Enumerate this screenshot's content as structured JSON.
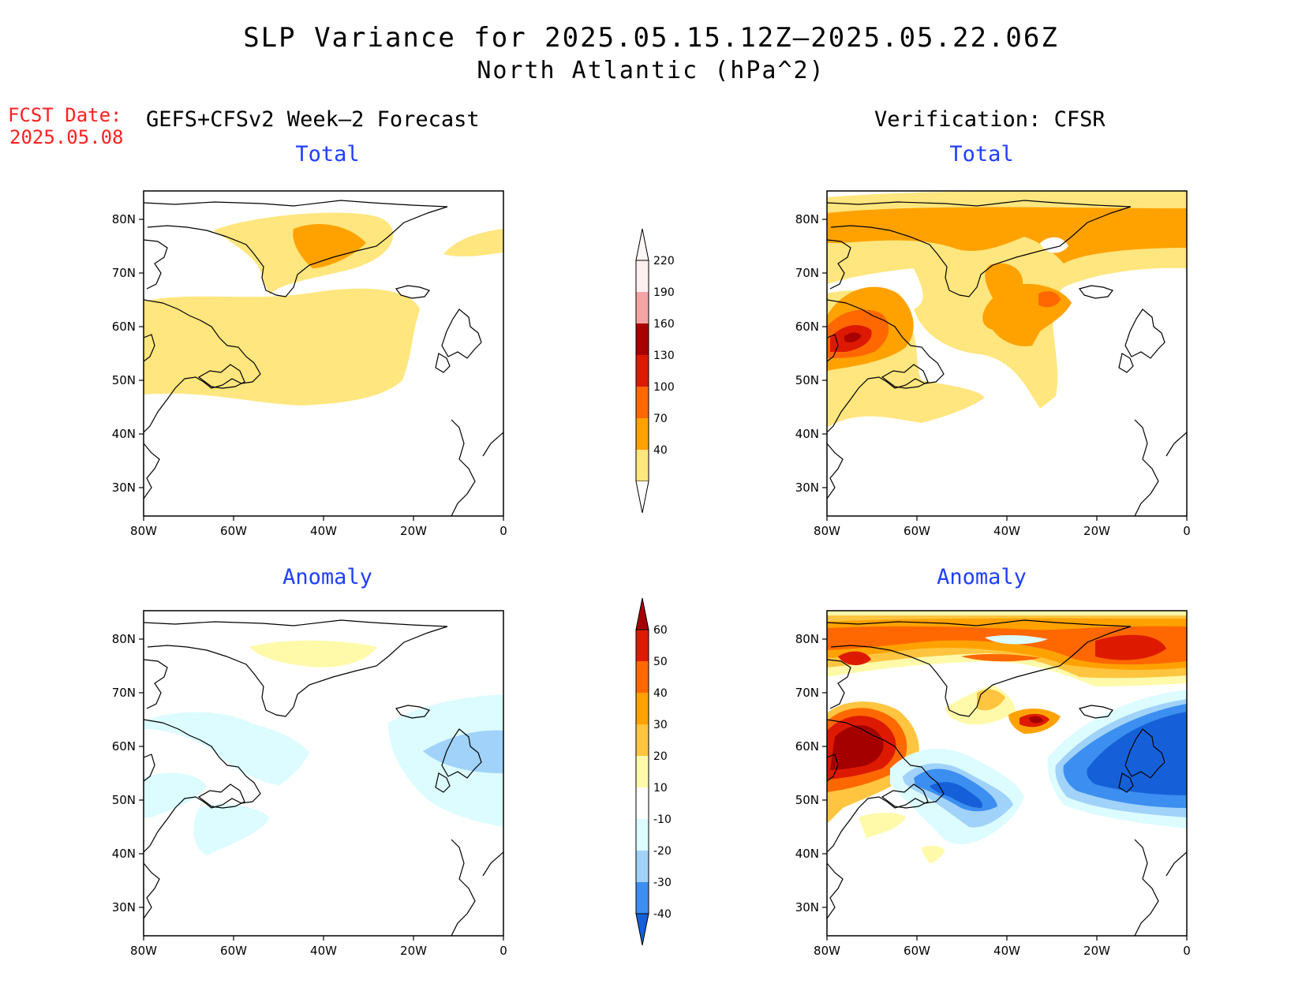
{
  "title": {
    "line1": "SLP Variance for 2025.05.15.12Z–2025.05.22.06Z",
    "line2": "North Atlantic (hPa^2)"
  },
  "forecast_date": {
    "label": "FCST Date:",
    "value": "2025.05.08"
  },
  "columns": {
    "left": "GEFS+CFSv2 Week–2 Forecast",
    "right": "Verification: CFSR"
  },
  "panels": {
    "top_left": "Total",
    "top_right": "Total",
    "bottom_left": "Anomaly",
    "bottom_right": "Anomaly"
  },
  "axes": {
    "lat_labels": [
      "80N",
      "70N",
      "60N",
      "50N",
      "40N",
      "30N"
    ],
    "lon_labels": [
      "80W",
      "60W",
      "40W",
      "20W",
      "0"
    ]
  },
  "colorbars": {
    "total": {
      "levels": [
        "220",
        "190",
        "160",
        "130",
        "100",
        "70",
        "40"
      ],
      "colors": [
        "#fff0f0",
        "#f4a4a4",
        "#a80000",
        "#dd1a00",
        "#ff6800",
        "#ffa200",
        "#ffe67e"
      ]
    },
    "anomaly": {
      "levels": [
        "60",
        "50",
        "40",
        "30",
        "20",
        "10",
        "-10",
        "-20",
        "-30",
        "-40"
      ],
      "colors": [
        "#a50000",
        "#dd1a00",
        "#ff6800",
        "#ffa200",
        "#ffc540",
        "#fffaaa",
        "#ffffff",
        "#dcfcff",
        "#a0d2fa",
        "#3c8ef0",
        "#1560d8"
      ]
    }
  },
  "colors": {
    "accent_blue": "#1f3fff",
    "fcst_red": "#ff2020"
  }
}
